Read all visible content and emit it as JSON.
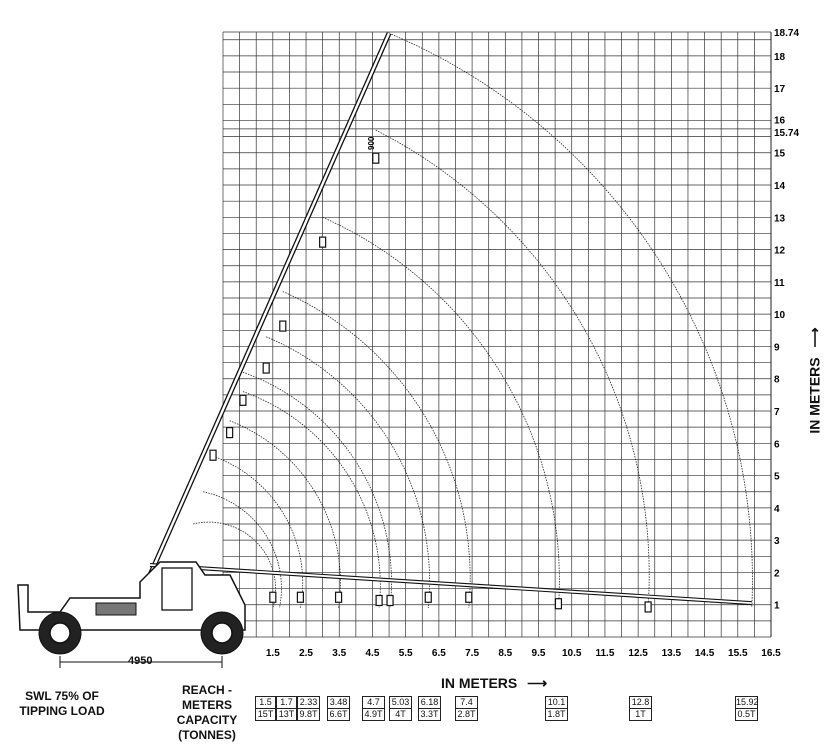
{
  "chart_data": {
    "type": "load-chart",
    "x_axis": {
      "label": "IN METERS",
      "ticks": [
        "1.5",
        "2.5",
        "3.5",
        "4.5",
        "5.5",
        "6.5",
        "7.5",
        "8.5",
        "9.5",
        "10.5",
        "11.5",
        "12.5",
        "13.5",
        "14.5",
        "15.5",
        "16.5"
      ],
      "range": [
        0,
        16.5
      ]
    },
    "y_axis": {
      "label": "IN METERS",
      "ticks": [
        "1",
        "2",
        "3",
        "4",
        "5",
        "6",
        "7",
        "8",
        "9",
        "10",
        "11",
        "12",
        "13",
        "14",
        "15",
        "15.74",
        "16",
        "17",
        "18",
        "18.74"
      ],
      "range": [
        0,
        18.74
      ]
    },
    "wheelbase_label": "4950",
    "hook_label": "900",
    "capacity_table": [
      {
        "reach": "1.5",
        "capacity": "15T",
        "x": 1.5
      },
      {
        "reach": "1.7",
        "capacity": "13T",
        "x": 1.7
      },
      {
        "reach": "2.33",
        "capacity": "9.8T",
        "x": 2.33
      },
      {
        "reach": "3.48",
        "capacity": "6.6T",
        "x": 3.48
      },
      {
        "reach": "4.7",
        "capacity": "4.9T",
        "x": 4.7
      },
      {
        "reach": "5.03",
        "capacity": "4T",
        "x": 5.03
      },
      {
        "reach": "6.18",
        "capacity": "3.3T",
        "x": 6.18
      },
      {
        "reach": "7.4",
        "capacity": "2.8T",
        "x": 7.4
      },
      {
        "reach": "10.1",
        "capacity": "1.8T",
        "x": 10.1
      },
      {
        "reach": "12.8",
        "capacity": "1T",
        "x": 12.8
      },
      {
        "reach": "15.92",
        "capacity": "0.5T",
        "x": 15.92
      }
    ]
  },
  "notes": {
    "swl": "SWL 75% OF TIPPING LOAD",
    "reach_capacity": "REACH - METERS CAPACITY (TONNES)"
  }
}
